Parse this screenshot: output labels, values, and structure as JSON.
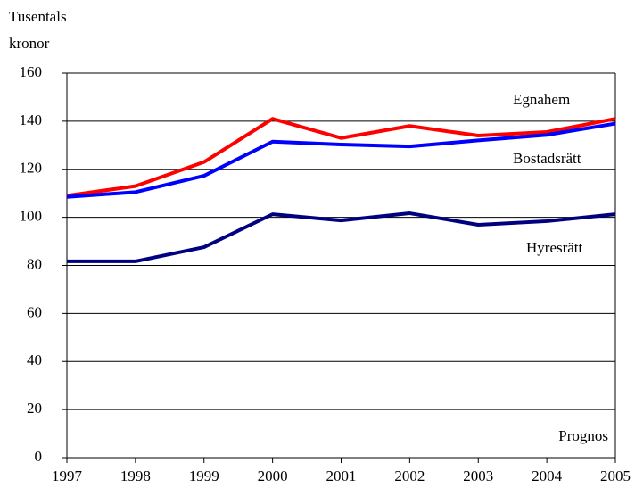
{
  "chart_data": {
    "type": "line",
    "ylabel": [
      "Tusentals",
      "kronor"
    ],
    "annotation": "Prognos",
    "x": [
      1997,
      1998,
      1999,
      2000,
      2001,
      2002,
      2003,
      2004,
      2005
    ],
    "xlim": [
      1997,
      2005
    ],
    "xticks": [
      1997,
      1998,
      1999,
      2000,
      2001,
      2002,
      2003,
      2004,
      2005
    ],
    "ylim": [
      0,
      160
    ],
    "yticks": [
      0,
      20,
      40,
      60,
      80,
      100,
      120,
      140,
      160
    ],
    "grid": true,
    "series": [
      {
        "name": "Egnahem",
        "color": "#ff0000",
        "values": [
          109,
          113,
          123,
          141,
          133,
          138,
          134,
          135.5,
          141
        ]
      },
      {
        "name": "Bostadsrätt",
        "color": "#0000ff",
        "values": [
          108.5,
          110.5,
          117.3,
          131.5,
          130.3,
          129.5,
          132,
          134.3,
          139
        ]
      },
      {
        "name": "Hyresrätt",
        "color": "#000080",
        "values": [
          81.7,
          81.7,
          87.6,
          101.3,
          98.7,
          101.7,
          96.9,
          98.4,
          101.3
        ]
      }
    ]
  }
}
